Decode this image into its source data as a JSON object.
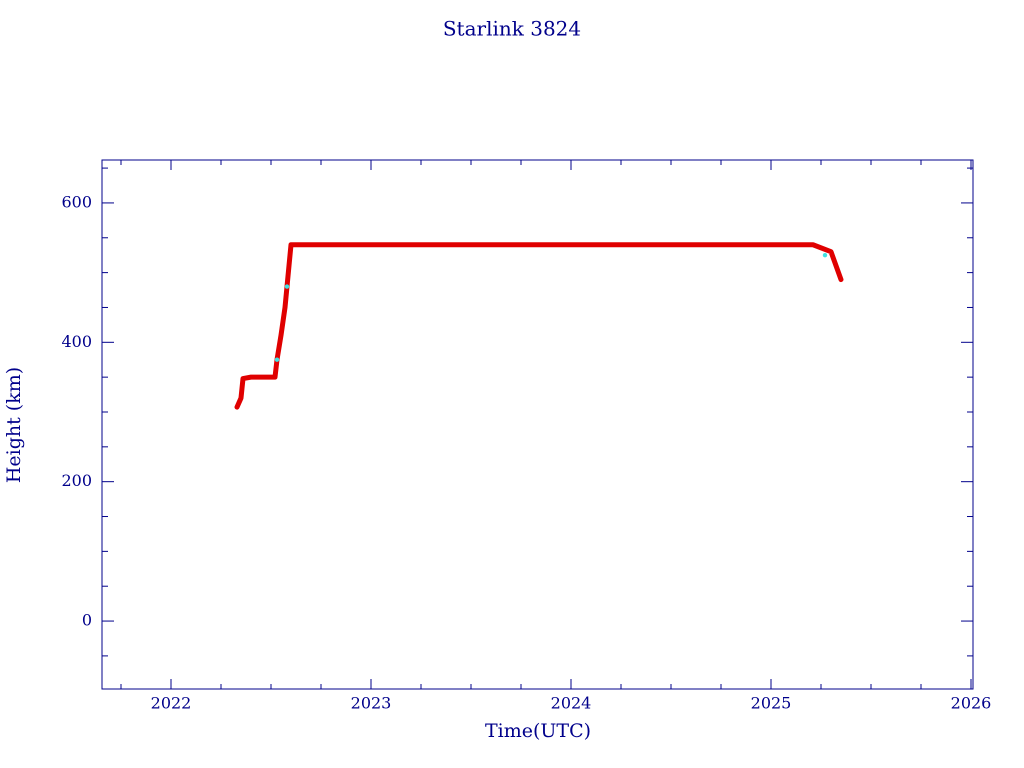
{
  "chart_data": {
    "type": "line",
    "title": "Starlink 3824",
    "xlabel": "Time(UTC)",
    "ylabel": "Height (km)",
    "xlim": [
      2021.655,
      2026.01
    ],
    "ylim": [
      -97.5,
      661.6
    ],
    "xticks": [
      2022,
      2023,
      2024,
      2025,
      2026
    ],
    "xminorticks": [
      2021.75,
      2022.25,
      2022.5,
      2022.75,
      2023.25,
      2023.5,
      2023.75,
      2024.25,
      2024.5,
      2024.75,
      2025.25,
      2025.5,
      2025.75
    ],
    "yticks": [
      0,
      200,
      400,
      600
    ],
    "yminorticks": [
      -50,
      50,
      100,
      150,
      250,
      300,
      350,
      450,
      500,
      550,
      650
    ],
    "axis_color": "#00008b",
    "series": [
      {
        "color": "#e00000",
        "x": [
          2022.33,
          2022.35,
          2022.36,
          2022.4,
          2022.52,
          2022.53,
          2022.55,
          2022.57,
          2022.59,
          2022.6,
          2025.21,
          2025.3,
          2025.35
        ],
        "values": [
          307,
          320,
          348,
          350,
          350,
          375,
          410,
          450,
          510,
          540,
          540,
          530,
          490
        ]
      },
      {
        "color": "#40e0e0",
        "x": [
          2022.53,
          2022.58,
          2025.27
        ],
        "values": [
          375,
          480,
          525
        ]
      }
    ]
  }
}
